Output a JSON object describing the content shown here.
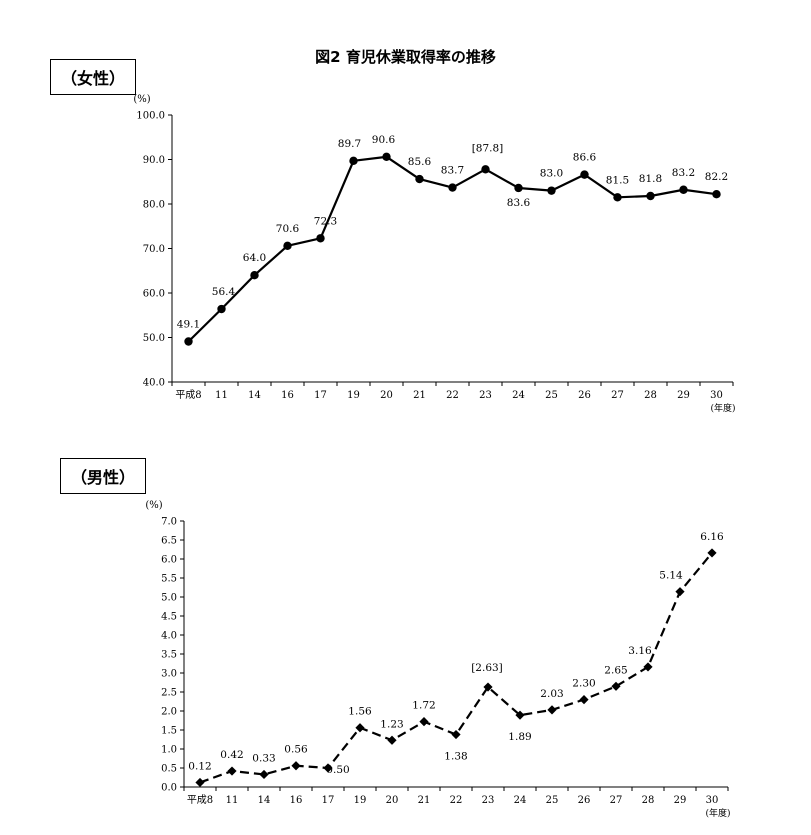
{
  "title": "図2 育児休業取得率の推移",
  "chart_data": [
    {
      "type": "line",
      "section_label": "（女性）",
      "ylabel": "(%)",
      "xunit": "(年度)",
      "ylim": [
        40.0,
        100.0
      ],
      "yticks": [
        "40.0",
        "50.0",
        "60.0",
        "70.0",
        "80.0",
        "90.0",
        "100.0"
      ],
      "categories": [
        "平成8",
        "11",
        "14",
        "16",
        "17",
        "19",
        "20",
        "21",
        "22",
        "23",
        "24",
        "25",
        "26",
        "27",
        "28",
        "29",
        "30"
      ],
      "values": [
        49.1,
        56.4,
        64.0,
        70.6,
        72.3,
        89.7,
        90.6,
        85.6,
        83.7,
        87.8,
        83.6,
        83.0,
        86.6,
        81.5,
        81.8,
        83.2,
        82.2
      ],
      "labels": [
        "49.1",
        "56.4",
        "64.0",
        "70.6",
        "72.3",
        "89.7",
        "90.6",
        "85.6",
        "83.7",
        "[87.8]",
        "83.6",
        "83.0",
        "86.6",
        "81.5",
        "81.8",
        "83.2",
        "82.2"
      ],
      "marker": "circle",
      "line_style": "solid",
      "grid": false
    },
    {
      "type": "line",
      "section_label": "（男性）",
      "ylabel": "(%)",
      "xunit": "(年度)",
      "ylim": [
        0.0,
        7.0
      ],
      "yticks": [
        "0.0",
        "0.5",
        "1.0",
        "1.5",
        "2.0",
        "2.5",
        "3.0",
        "3.5",
        "4.0",
        "4.5",
        "5.0",
        "5.5",
        "6.0",
        "6.5",
        "7.0"
      ],
      "categories": [
        "平成8",
        "11",
        "14",
        "16",
        "17",
        "19",
        "20",
        "21",
        "22",
        "23",
        "24",
        "25",
        "26",
        "27",
        "28",
        "29",
        "30"
      ],
      "values": [
        0.12,
        0.42,
        0.33,
        0.56,
        0.5,
        1.56,
        1.23,
        1.72,
        1.38,
        2.63,
        1.89,
        2.03,
        2.3,
        2.65,
        3.16,
        5.14,
        6.16
      ],
      "labels": [
        "0.12",
        "0.42",
        "0.33",
        "0.56",
        "0.50",
        "1.56",
        "1.23",
        "1.72",
        "1.38",
        "[2.63]",
        "1.89",
        "2.03",
        "2.30",
        "2.65",
        "3.16",
        "5.14",
        "6.16"
      ],
      "marker": "diamond",
      "line_style": "dashed",
      "grid": false
    }
  ]
}
